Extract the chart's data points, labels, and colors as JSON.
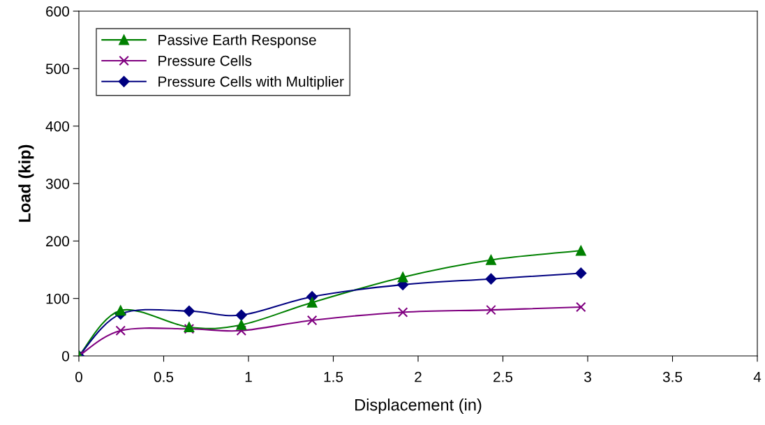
{
  "chart_data": {
    "type": "line",
    "xlabel": "Displacement (in)",
    "ylabel": "Load (kip)",
    "x": [
      0,
      0.246,
      0.65,
      0.958,
      1.375,
      1.91,
      2.43,
      2.96
    ],
    "series": [
      {
        "name": "Passive Earth Response",
        "color": "#008000",
        "marker": "triangle",
        "values": [
          0,
          79,
          50,
          54,
          93,
          137,
          167,
          183
        ]
      },
      {
        "name": "Pressure Cells",
        "color": "#800080",
        "marker": "cross",
        "values": [
          0,
          44,
          47,
          44,
          62,
          76,
          80,
          85
        ]
      },
      {
        "name": "Pressure Cells with Multiplier",
        "color": "#000080",
        "marker": "diamond",
        "values": [
          0,
          73,
          78,
          71,
          103,
          124,
          134,
          144
        ]
      }
    ],
    "xlim": [
      0,
      4
    ],
    "xticks": [
      0,
      0.5,
      1,
      1.5,
      2,
      2.5,
      3,
      3.5,
      4
    ],
    "ylim": [
      0,
      600
    ],
    "yticks": [
      0,
      100,
      200,
      300,
      400,
      500,
      600
    ],
    "grid": false,
    "legend": "top left",
    "line_style": "solid"
  }
}
